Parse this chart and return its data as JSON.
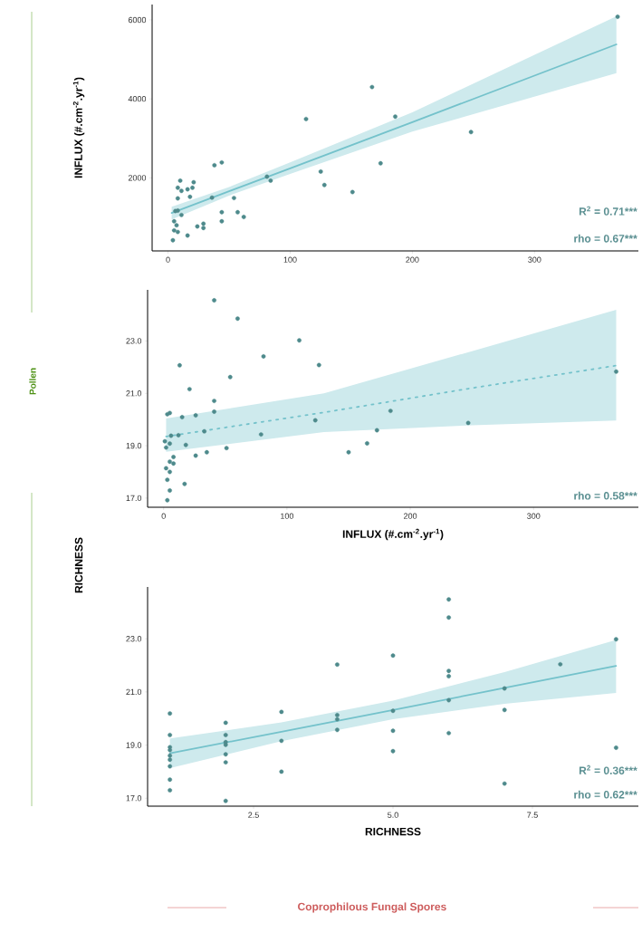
{
  "chart_data": [
    {
      "type": "scatter",
      "ylabel": "INFLUX (#.cm$^{-2}$.yr$^{-1}$)",
      "xlim": [
        -13,
        385
      ],
      "ylim": [
        150,
        6390
      ],
      "xticks": [
        0,
        100,
        200,
        300
      ],
      "yticks": [
        2000,
        4000,
        6000
      ],
      "annotations": [
        "R$^{2}$ = 0.71***",
        "rho = 0.67***",
        "Pollen"
      ],
      "series": [
        {
          "type": "scatter",
          "marker": "circle",
          "color": "#4e8a8c",
          "x": [
            113,
            38,
            44,
            81,
            84,
            125,
            128,
            10,
            21,
            8,
            11,
            16,
            20,
            8,
            18,
            36,
            54,
            6,
            8,
            11,
            5,
            7,
            5,
            8,
            4,
            16,
            24,
            29,
            29,
            44,
            44,
            57,
            62,
            167,
            186,
            248,
            174,
            151,
            368
          ],
          "values": [
            3490,
            2320,
            2390,
            2030,
            1930,
            2160,
            1820,
            1930,
            1890,
            1750,
            1670,
            1710,
            1750,
            1480,
            1520,
            1500,
            1490,
            1160,
            1170,
            1060,
            900,
            800,
            670,
            630,
            420,
            540,
            770,
            840,
            730,
            1130,
            900,
            1130,
            1010,
            4300,
            3550,
            3160,
            2370,
            1640,
            6080
          ]
        },
        {
          "type": "line",
          "marker": "none",
          "line_style": "solid",
          "color": "#74c2cb",
          "x": [
            3,
            50,
            100,
            200,
            367
          ],
          "values": [
            1110,
            1660,
            2240,
            3410,
            5380
          ],
          "lower": [
            950,
            1550,
            2100,
            3170,
            4650
          ],
          "upper": [
            1270,
            1770,
            2390,
            3660,
            6090
          ]
        }
      ]
    },
    {
      "type": "scatter",
      "xlabel": "INFLUX (#.cm$^{-2}$.yr$^{-1}$)",
      "ylabel": "RICHNESS",
      "xlim": [
        -13,
        385
      ],
      "ylim": [
        16.65,
        24.95
      ],
      "xticks": [
        0,
        100,
        200,
        300
      ],
      "yticks": [
        {
          "value": 17,
          "label": "17.0"
        },
        {
          "value": 19,
          "label": "19.0"
        },
        {
          "value": 21,
          "label": "21.0"
        },
        {
          "value": 23,
          "label": "23.0"
        }
      ],
      "annotations": [
        "rho = 0.58***"
      ],
      "series": [
        {
          "type": "scatter",
          "marker": "circle",
          "color": "#4e8a8c",
          "x": [
            41,
            60,
            110,
            81,
            126,
            13,
            54,
            21,
            41,
            41,
            3,
            5,
            15,
            26,
            123,
            33,
            79,
            6,
            12,
            1,
            5,
            2,
            18,
            26,
            35,
            51,
            8,
            5,
            8,
            2,
            5,
            3,
            17,
            5,
            3,
            184,
            173,
            165,
            150,
            247,
            367
          ],
          "values": [
            24.55,
            23.85,
            23.02,
            22.41,
            22.08,
            22.07,
            21.62,
            21.16,
            20.71,
            20.3,
            20.2,
            20.25,
            20.09,
            20.16,
            19.97,
            19.55,
            19.43,
            19.38,
            19.4,
            19.17,
            19.08,
            18.93,
            19.03,
            18.62,
            18.75,
            18.91,
            18.57,
            18.39,
            18.32,
            18.14,
            18.0,
            17.7,
            17.54,
            17.29,
            16.92,
            20.33,
            19.59,
            19.09,
            18.75,
            19.87,
            21.83
          ]
        },
        {
          "type": "line",
          "marker": "none",
          "line_style": "dotted",
          "color": "#74c2cb",
          "x": [
            2,
            130,
            250,
            367
          ],
          "values": [
            19.35,
            20.27,
            21.2,
            22.06
          ],
          "lower": [
            18.77,
            19.52,
            19.78,
            19.96
          ],
          "upper": [
            20.04,
            21.0,
            22.61,
            24.19
          ]
        }
      ]
    },
    {
      "type": "scatter",
      "xlabel": "RICHNESS",
      "xlim": [
        0.6,
        9.4
      ],
      "ylim": [
        16.7,
        24.95
      ],
      "xticks": [
        2.5,
        {
          "value": 5,
          "label": "5.0"
        },
        7.5
      ],
      "yticks": [
        {
          "value": 17,
          "label": "17.0"
        },
        {
          "value": 19,
          "label": "19.0"
        },
        {
          "value": 21,
          "label": "21.0"
        },
        {
          "value": 23,
          "label": "23.0"
        }
      ],
      "annotations": [
        "R$^{2}$ = 0.36***",
        "rho = 0.62***",
        "Coprophilous Fungal Spores"
      ],
      "series": [
        {
          "type": "scatter",
          "marker": "circle",
          "color": "#4e8a8c",
          "x": [
            1,
            1,
            1,
            1,
            1,
            1,
            1,
            1,
            1,
            2,
            2,
            2,
            2,
            2,
            2,
            2,
            3,
            3,
            3,
            4,
            4,
            4,
            4,
            5,
            5,
            5,
            5,
            6,
            6,
            6,
            6,
            6,
            6,
            7,
            7,
            7,
            8,
            9,
            9
          ],
          "values": [
            20.19,
            19.38,
            18.92,
            18.81,
            18.6,
            18.45,
            18.2,
            17.7,
            17.3,
            19.84,
            19.38,
            19.11,
            19.01,
            18.65,
            18.35,
            16.9,
            20.25,
            19.16,
            18.0,
            22.03,
            20.13,
            19.97,
            19.57,
            22.37,
            20.29,
            19.54,
            18.77,
            24.48,
            23.8,
            21.79,
            21.59,
            20.69,
            19.45,
            21.13,
            20.32,
            17.55,
            22.04,
            22.98,
            18.9
          ]
        },
        {
          "type": "line",
          "marker": "none",
          "line_style": "solid",
          "color": "#74c2cb",
          "x": [
            1,
            3,
            5,
            7,
            9
          ],
          "values": [
            18.69,
            19.5,
            20.32,
            21.15,
            21.98
          ],
          "lower": [
            18.13,
            19.15,
            19.97,
            20.55,
            20.96
          ],
          "upper": [
            19.25,
            19.85,
            20.67,
            21.75,
            22.96
          ]
        }
      ]
    }
  ]
}
